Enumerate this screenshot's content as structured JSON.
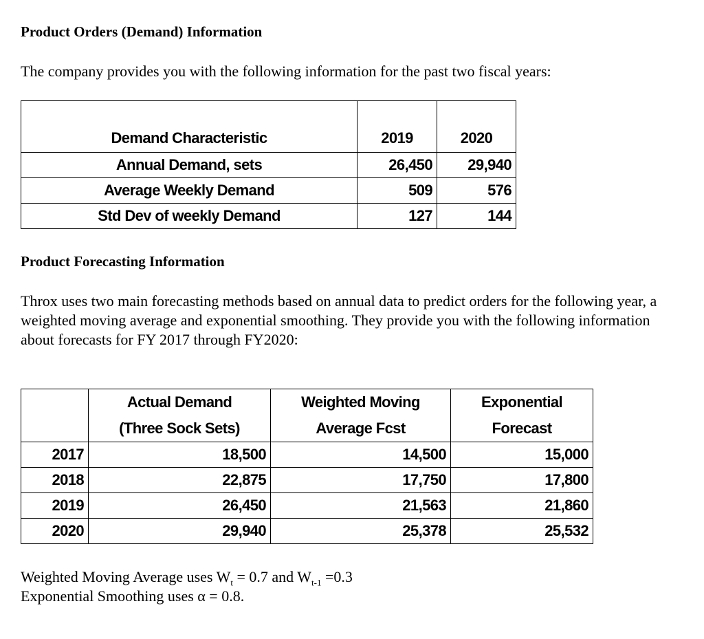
{
  "section1": {
    "title": "Product Orders (Demand) Information",
    "intro": "The company provides you with the following information for the past two fiscal years:"
  },
  "demand_table": {
    "headers": [
      "Demand Characteristic",
      "2019",
      "2020"
    ],
    "rows": [
      [
        "Annual Demand, sets",
        "26,450",
        "29,940"
      ],
      [
        "Average Weekly Demand",
        "509",
        "576"
      ],
      [
        "Std Dev of weekly Demand",
        "127",
        "144"
      ]
    ]
  },
  "section2": {
    "title": "Product Forecasting Information",
    "intro": "Throx uses two main forecasting methods based on annual data to predict orders for the following year, a weighted moving average and exponential smoothing.  They provide you with the following information about forecasts for FY 2017 through FY2020:"
  },
  "forecast_table": {
    "headers": [
      [
        "",
        ""
      ],
      [
        "Actual Demand",
        "(Three Sock Sets)"
      ],
      [
        "Weighted Moving",
        "Average Fcst"
      ],
      [
        "Exponential",
        "Forecast"
      ]
    ],
    "rows": [
      [
        "2017",
        "18,500",
        "14,500",
        "15,000"
      ],
      [
        "2018",
        "22,875",
        "17,750",
        "17,800"
      ],
      [
        "2019",
        "26,450",
        "21,563",
        "21,860"
      ],
      [
        "2020",
        "29,940",
        "25,378",
        "25,532"
      ]
    ]
  },
  "notes": {
    "wma_prefix": "Weighted Moving Average uses W",
    "wma_sub1": "t",
    "wma_mid": " = 0.7 and W",
    "wma_sub2": "t-1",
    "wma_suffix": " =0.3",
    "exp": "Exponential Smoothing uses α = 0.8."
  }
}
